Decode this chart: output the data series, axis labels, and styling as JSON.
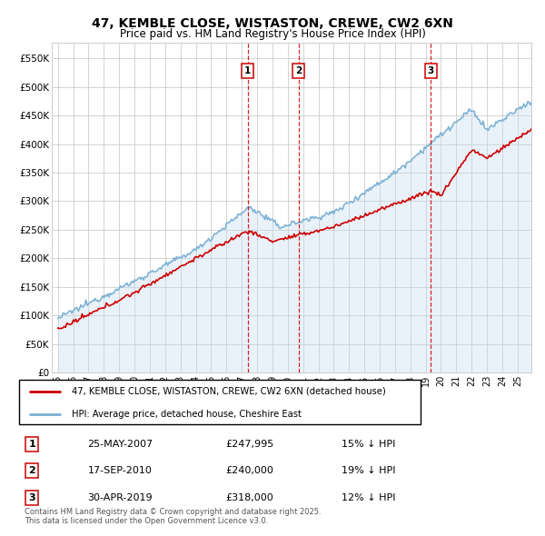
{
  "title": "47, KEMBLE CLOSE, WISTASTON, CREWE, CW2 6XN",
  "subtitle": "Price paid vs. HM Land Registry's House Price Index (HPI)",
  "red_label": "47, KEMBLE CLOSE, WISTASTON, CREWE, CW2 6XN (detached house)",
  "blue_label": "HPI: Average price, detached house, Cheshire East",
  "footnote": "Contains HM Land Registry data © Crown copyright and database right 2025.\nThis data is licensed under the Open Government Licence v3.0.",
  "sale_markers": [
    {
      "num": "1",
      "date": "25-MAY-2007",
      "price": "£247,995",
      "pct": "15% ↓ HPI",
      "year": 2007.38
    },
    {
      "num": "2",
      "date": "17-SEP-2010",
      "price": "£240,000",
      "pct": "19% ↓ HPI",
      "year": 2010.71
    },
    {
      "num": "3",
      "date": "30-APR-2019",
      "price": "£318,000",
      "pct": "12% ↓ HPI",
      "year": 2019.33
    }
  ],
  "ylim": [
    0,
    577000
  ],
  "yticks": [
    0,
    50000,
    100000,
    150000,
    200000,
    250000,
    300000,
    350000,
    400000,
    450000,
    500000,
    550000
  ],
  "ytick_labels": [
    "£0",
    "£50K",
    "£100K",
    "£150K",
    "£200K",
    "£250K",
    "£300K",
    "£350K",
    "£400K",
    "£450K",
    "£500K",
    "£550K"
  ],
  "xlim_start": 1994.6,
  "xlim_end": 2025.9,
  "red_color": "#cc0000",
  "blue_color": "#7ab0d4",
  "blue_fill_color": "#c5dcee",
  "grid_color": "#cccccc",
  "bg_color": "#ffffff",
  "marker_box_color": "#cc0000"
}
